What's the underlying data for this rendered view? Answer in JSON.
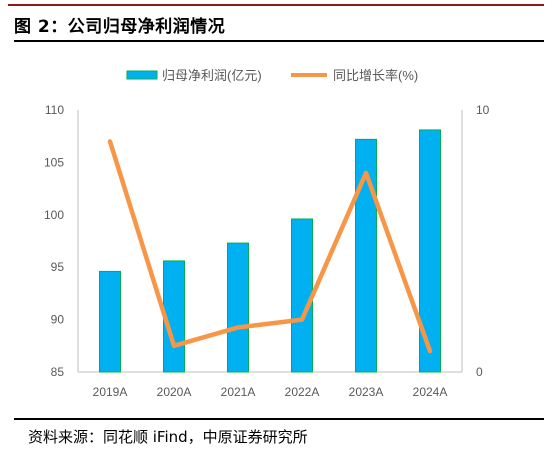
{
  "figure_title": "图 2：公司归母净利润情况",
  "source_note": "资料来源：同花顺 iFind，中原证券研究所",
  "chart_data": {
    "type": "bar",
    "categories": [
      "2019A",
      "2020A",
      "2021A",
      "2022A",
      "2023A",
      "2024A"
    ],
    "series": [
      {
        "name": "归母净利润(亿元)",
        "type": "bar",
        "axis": "left",
        "color": "#00b0f0",
        "stroke": "#00b050",
        "values": [
          94.6,
          95.6,
          97.3,
          99.6,
          107.2,
          108.1
        ]
      },
      {
        "name": "同比增长率(%)",
        "type": "line",
        "axis": "right",
        "color": "#f79646",
        "values": [
          8.8,
          1.0,
          1.7,
          2.0,
          7.6,
          0.8
        ]
      }
    ],
    "y_left": {
      "min": 85,
      "max": 110,
      "ticks": [
        85,
        90,
        95,
        100,
        105,
        110
      ]
    },
    "y_right": {
      "min": 0,
      "max": 10,
      "tick_labels": [
        "0",
        "10"
      ]
    },
    "grid": false,
    "legend": "top"
  }
}
